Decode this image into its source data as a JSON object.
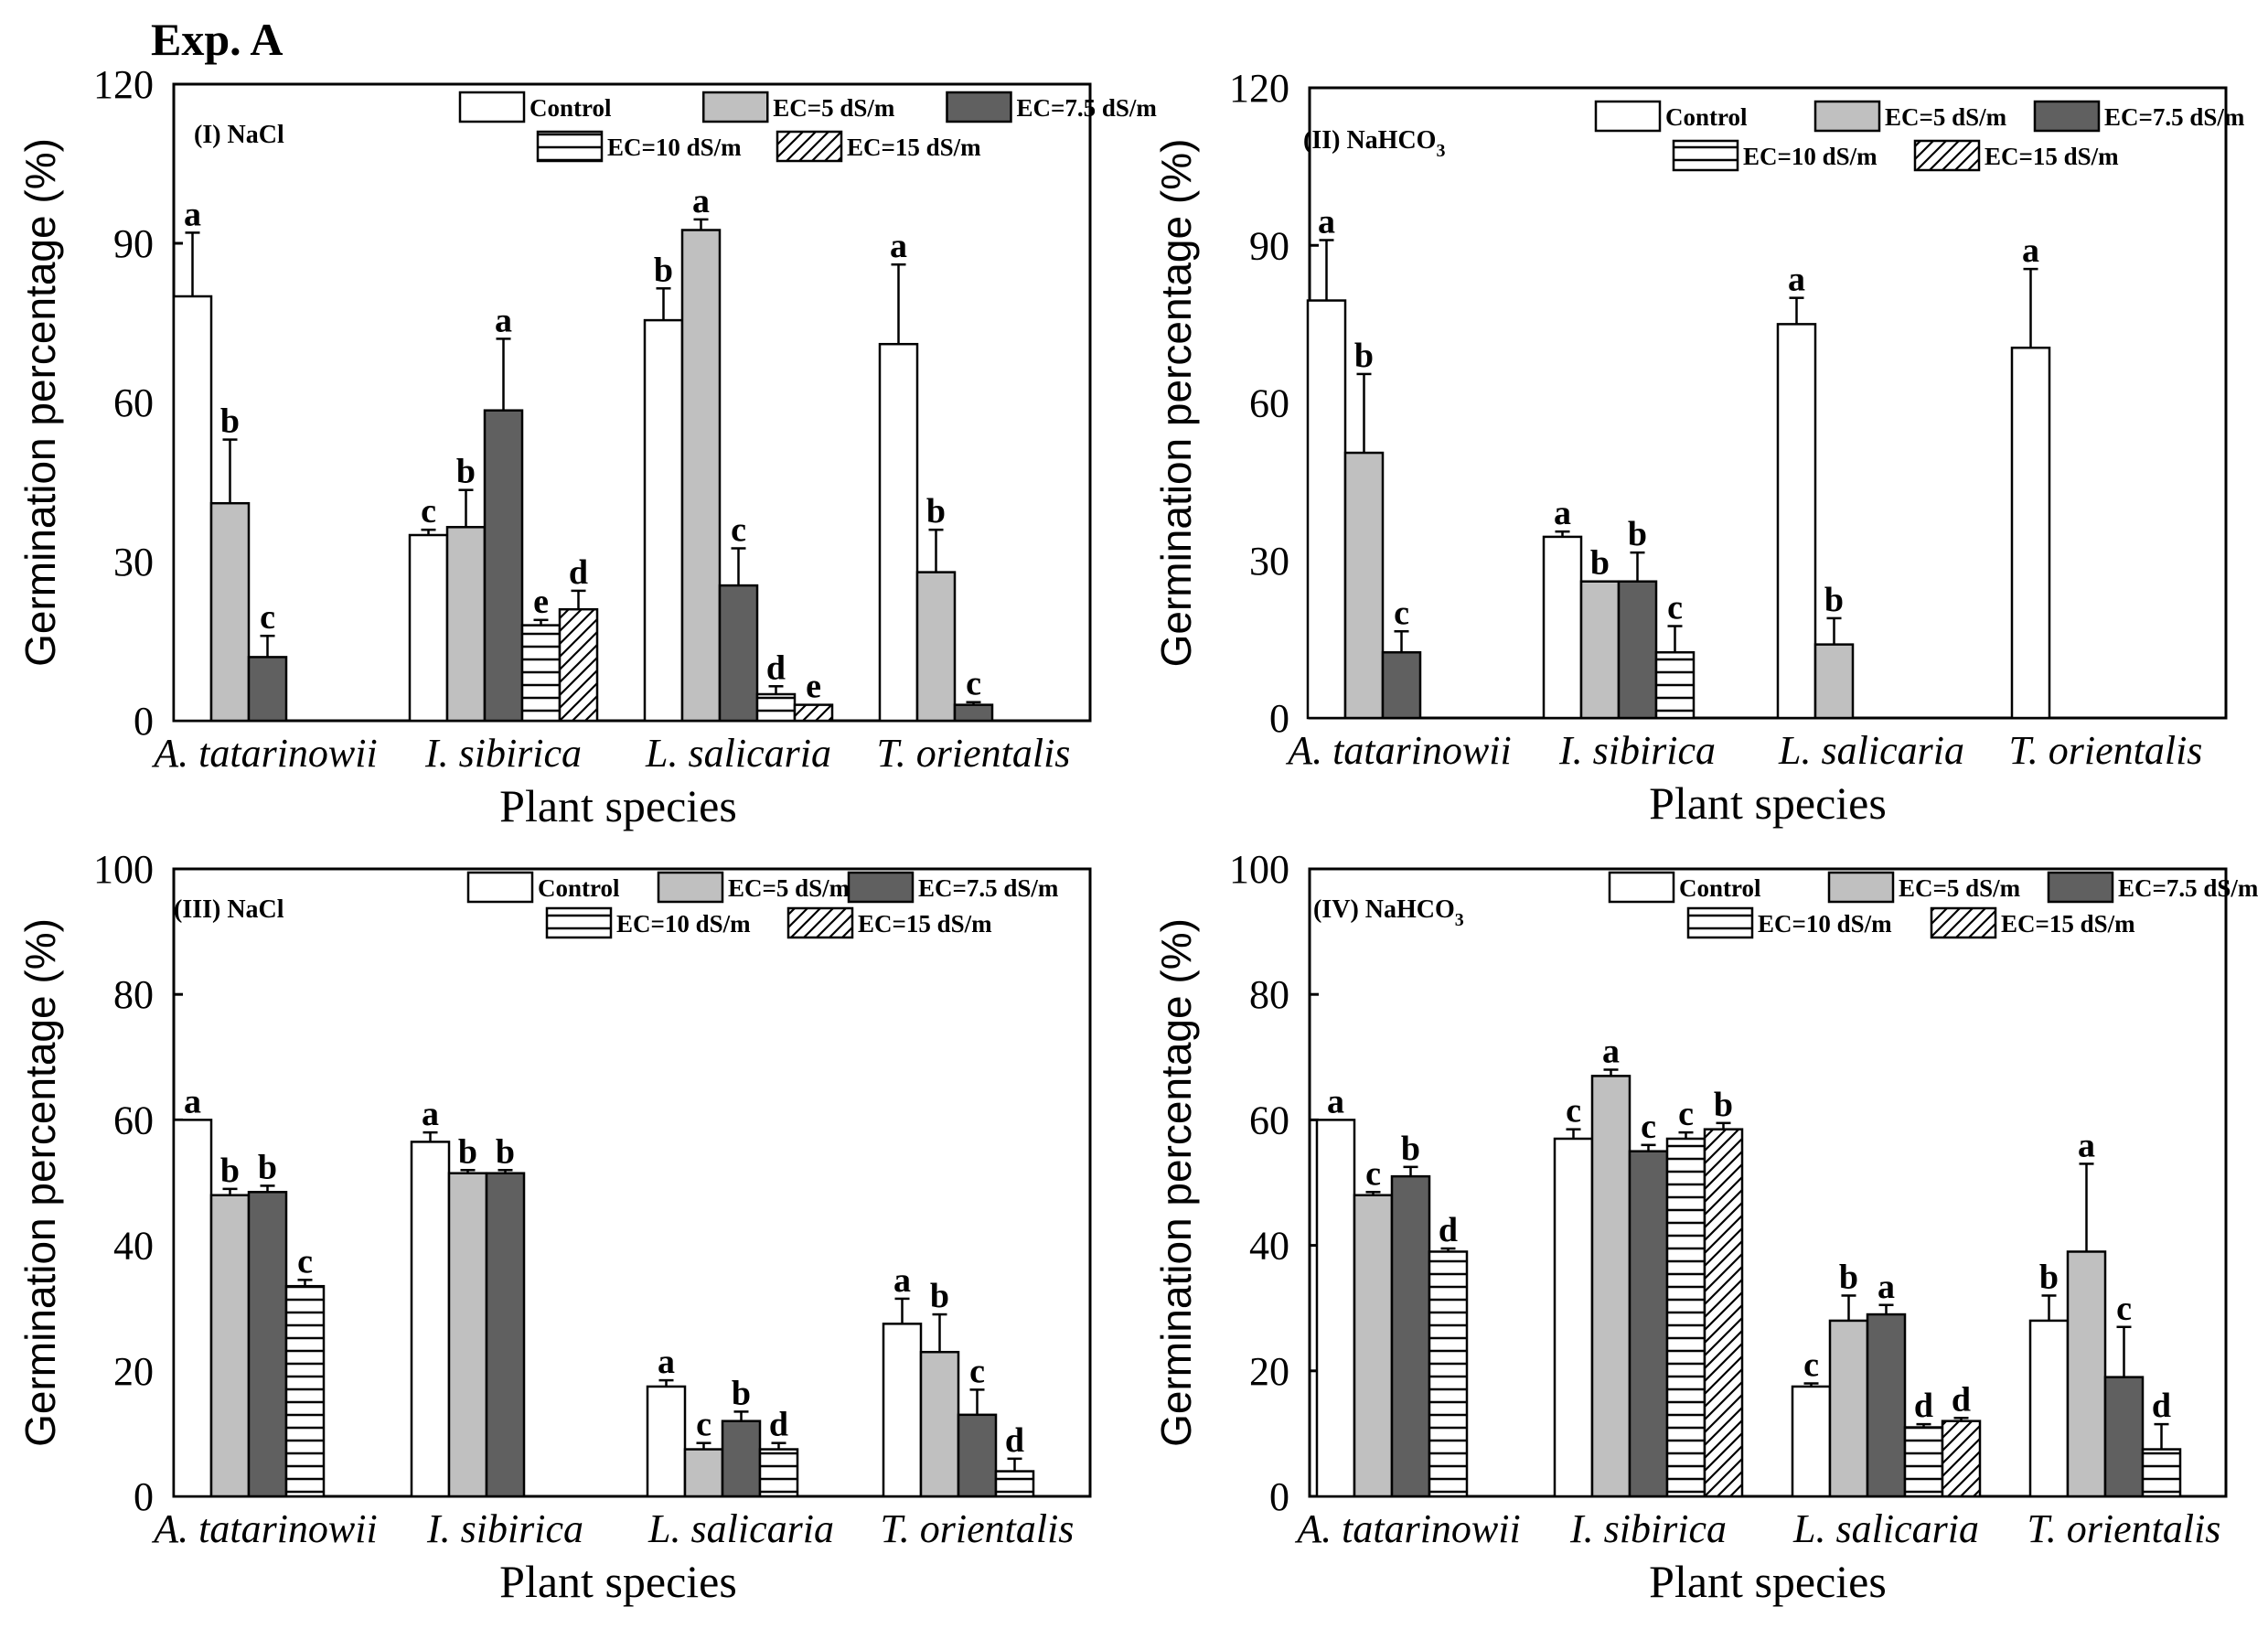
{
  "header": "Exp. A",
  "palette": {
    "Control": "#ffffff",
    "EC=5 dS/m": "#c0c0c0",
    "EC=7.5 dS/m": "#606060",
    "EC=10 dS/m": "hlines",
    "EC=15 dS/m": "diag"
  },
  "chart_data": [
    {
      "type": "bar",
      "title": "(I) NaCl",
      "title_main": "(I) NaCl",
      "title_sub": "",
      "xlabel": "Plant species",
      "ylabel": "Germination percentage (%)",
      "ylim": [
        0,
        120
      ],
      "yticks": [
        "0",
        "30",
        "60",
        "90",
        "120"
      ],
      "categories": [
        "A. tatarinowii",
        "I. sibirica",
        "L. salicaria",
        "T. orientalis"
      ],
      "legend_rows": [
        [
          "Control",
          "EC=5 dS/m",
          "EC=7.5 dS/m"
        ],
        [
          "EC=10 dS/m",
          "EC=15 dS/m"
        ]
      ],
      "groups": [
        [
          {
            "series": "Control",
            "value": 80,
            "err": 12,
            "sig": "a"
          },
          {
            "series": "EC=5 dS/m",
            "value": 41,
            "err": 12,
            "sig": "b"
          },
          {
            "series": "EC=7.5 dS/m",
            "value": 12,
            "err": 4,
            "sig": "c"
          }
        ],
        [
          {
            "series": "Control",
            "value": 35,
            "err": 1,
            "sig": "c"
          },
          {
            "series": "EC=5 dS/m",
            "value": 36.5,
            "err": 7,
            "sig": "b"
          },
          {
            "series": "EC=7.5 dS/m",
            "value": 58.5,
            "err": 13.5,
            "sig": "a"
          },
          {
            "series": "EC=10 dS/m",
            "value": 18,
            "err": 1,
            "sig": "e"
          },
          {
            "series": "EC=15 dS/m",
            "value": 21,
            "err": 3.5,
            "sig": "d"
          }
        ],
        [
          {
            "series": "Control",
            "value": 75.5,
            "err": 6,
            "sig": "b"
          },
          {
            "series": "EC=5 dS/m",
            "value": 92.5,
            "err": 2,
            "sig": "a"
          },
          {
            "series": "EC=7.5 dS/m",
            "value": 25.5,
            "err": 7,
            "sig": "c"
          },
          {
            "series": "EC=10 dS/m",
            "value": 5,
            "err": 1.5,
            "sig": "d"
          },
          {
            "series": "EC=15 dS/m",
            "value": 3,
            "err": 0,
            "sig": "e"
          }
        ],
        [
          {
            "series": "Control",
            "value": 71,
            "err": 15,
            "sig": "a"
          },
          {
            "series": "EC=5 dS/m",
            "value": 28,
            "err": 8,
            "sig": "b"
          },
          {
            "series": "EC=7.5 dS/m",
            "value": 3,
            "err": 0.5,
            "sig": "c"
          }
        ]
      ]
    },
    {
      "type": "bar",
      "title": "(II) NaHCO3",
      "title_main": "(II) NaHCO",
      "title_sub": "3",
      "xlabel": "Plant species",
      "ylabel": "Germination percentage (%)",
      "ylim": [
        0,
        120
      ],
      "yticks": [
        "0",
        "30",
        "60",
        "90",
        "120"
      ],
      "categories": [
        "A. tatarinowii",
        "I. sibirica",
        "L. salicaria",
        "T. orientalis"
      ],
      "legend_rows": [
        [
          "Control",
          "EC=5 dS/m",
          "EC=7.5 dS/m"
        ],
        [
          "EC=10 dS/m",
          "EC=15 dS/m"
        ]
      ],
      "groups": [
        [
          {
            "series": "Control",
            "value": 79.5,
            "err": 11.5,
            "sig": "a"
          },
          {
            "series": "EC=5 dS/m",
            "value": 50.5,
            "err": 15,
            "sig": "b"
          },
          {
            "series": "EC=7.5 dS/m",
            "value": 12.5,
            "err": 4,
            "sig": "c"
          }
        ],
        [
          {
            "series": "Control",
            "value": 34.5,
            "err": 1,
            "sig": "a"
          },
          {
            "series": "EC=5 dS/m",
            "value": 26,
            "err": 0,
            "sig": "b"
          },
          {
            "series": "EC=7.5 dS/m",
            "value": 26,
            "err": 5.5,
            "sig": "b"
          },
          {
            "series": "EC=10 dS/m",
            "value": 12.5,
            "err": 5,
            "sig": "c"
          }
        ],
        [
          {
            "series": "Control",
            "value": 75,
            "err": 5,
            "sig": "a"
          },
          {
            "series": "EC=5 dS/m",
            "value": 14,
            "err": 5,
            "sig": "b"
          }
        ],
        [
          {
            "series": "Control",
            "value": 70.5,
            "err": 15,
            "sig": "a"
          }
        ]
      ]
    },
    {
      "type": "bar",
      "title": "(III) NaCl",
      "title_main": "(III) NaCl",
      "title_sub": "",
      "xlabel": "Plant species",
      "ylabel": "Germination percentage (%)",
      "ylim": [
        0,
        100
      ],
      "yticks": [
        "0",
        "20",
        "40",
        "60",
        "80",
        "100"
      ],
      "categories": [
        "A. tatarinowii",
        "I. sibirica",
        "L. salicaria",
        "T. orientalis"
      ],
      "legend_rows": [
        [
          "Control",
          "EC=5 dS/m",
          "EC=7.5 dS/m"
        ],
        [
          "EC=10 dS/m",
          "EC=15 dS/m"
        ]
      ],
      "groups": [
        [
          {
            "series": "Control",
            "value": 60,
            "err": 0,
            "sig": "a"
          },
          {
            "series": "EC=5 dS/m",
            "value": 48,
            "err": 1,
            "sig": "b"
          },
          {
            "series": "EC=7.5 dS/m",
            "value": 48.5,
            "err": 1,
            "sig": "b"
          },
          {
            "series": "EC=10 dS/m",
            "value": 33.5,
            "err": 1,
            "sig": "c"
          }
        ],
        [
          {
            "series": "Control",
            "value": 56.5,
            "err": 1.5,
            "sig": "a"
          },
          {
            "series": "EC=5 dS/m",
            "value": 51.5,
            "err": 0.5,
            "sig": "b"
          },
          {
            "series": "EC=7.5 dS/m",
            "value": 51.5,
            "err": 0.5,
            "sig": "b"
          }
        ],
        [
          {
            "series": "Control",
            "value": 17.5,
            "err": 1,
            "sig": "a"
          },
          {
            "series": "EC=5 dS/m",
            "value": 7.5,
            "err": 1,
            "sig": "c"
          },
          {
            "series": "EC=7.5 dS/m",
            "value": 12,
            "err": 1.5,
            "sig": "b"
          },
          {
            "series": "EC=10 dS/m",
            "value": 7.5,
            "err": 1,
            "sig": "d"
          }
        ],
        [
          {
            "series": "Control",
            "value": 27.5,
            "err": 4,
            "sig": "a"
          },
          {
            "series": "EC=5 dS/m",
            "value": 23,
            "err": 6,
            "sig": "b"
          },
          {
            "series": "EC=7.5 dS/m",
            "value": 13,
            "err": 4,
            "sig": "c"
          },
          {
            "series": "EC=10 dS/m",
            "value": 4,
            "err": 2,
            "sig": "d"
          }
        ]
      ]
    },
    {
      "type": "bar",
      "title": "(IV) NaHCO3",
      "title_main": "(IV) NaHCO",
      "title_sub": "3",
      "xlabel": "Plant species",
      "ylabel": "Germination percentage (%)",
      "ylim": [
        0,
        100
      ],
      "yticks": [
        "0",
        "20",
        "40",
        "60",
        "80",
        "100"
      ],
      "categories": [
        "A. tatarinowii",
        "I. sibirica",
        "L. salicaria",
        "T. orientalis"
      ],
      "legend_rows": [
        [
          "Control",
          "EC=5 dS/m",
          "EC=7.5 dS/m"
        ],
        [
          "EC=10 dS/m",
          "EC=15 dS/m"
        ]
      ],
      "groups": [
        [
          {
            "series": "Control",
            "value": 60,
            "err": 0,
            "sig": "a"
          },
          {
            "series": "EC=5 dS/m",
            "value": 48,
            "err": 0.5,
            "sig": "c"
          },
          {
            "series": "EC=7.5 dS/m",
            "value": 51,
            "err": 1.5,
            "sig": "b"
          },
          {
            "series": "EC=10 dS/m",
            "value": 39,
            "err": 0.5,
            "sig": "d"
          }
        ],
        [
          {
            "series": "Control",
            "value": 57,
            "err": 1.5,
            "sig": "c"
          },
          {
            "series": "EC=5 dS/m",
            "value": 67,
            "err": 1,
            "sig": "a"
          },
          {
            "series": "EC=7.5 dS/m",
            "value": 55,
            "err": 1,
            "sig": "c"
          },
          {
            "series": "EC=10 dS/m",
            "value": 57,
            "err": 1,
            "sig": "c"
          },
          {
            "series": "EC=15 dS/m",
            "value": 58.5,
            "err": 1,
            "sig": "b"
          }
        ],
        [
          {
            "series": "Control",
            "value": 17.5,
            "err": 0.5,
            "sig": "c"
          },
          {
            "series": "EC=5 dS/m",
            "value": 28,
            "err": 4,
            "sig": "b"
          },
          {
            "series": "EC=7.5 dS/m",
            "value": 29,
            "err": 1.5,
            "sig": "a"
          },
          {
            "series": "EC=10 dS/m",
            "value": 11,
            "err": 0.5,
            "sig": "d"
          },
          {
            "series": "EC=15 dS/m",
            "value": 12,
            "err": 0.5,
            "sig": "d"
          }
        ],
        [
          {
            "series": "Control",
            "value": 28,
            "err": 4,
            "sig": "b"
          },
          {
            "series": "EC=5 dS/m",
            "value": 39,
            "err": 14,
            "sig": "a"
          },
          {
            "series": "EC=7.5 dS/m",
            "value": 19,
            "err": 8,
            "sig": "c"
          },
          {
            "series": "EC=10 dS/m",
            "value": 7.5,
            "err": 4,
            "sig": "d"
          }
        ]
      ]
    }
  ]
}
